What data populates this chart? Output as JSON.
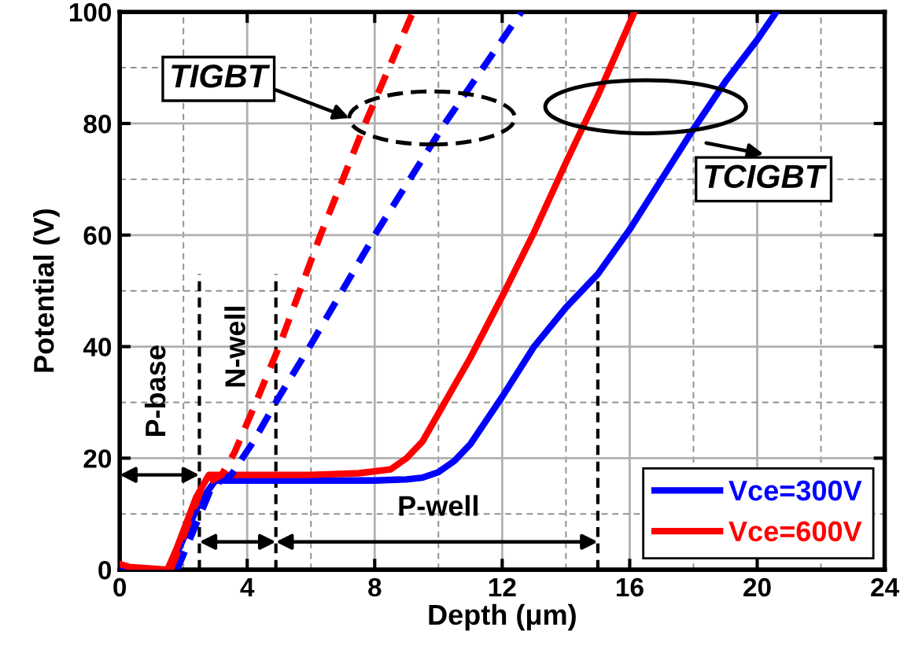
{
  "chart_data": {
    "type": "line",
    "xlabel": "Depth (μm)",
    "ylabel": "Potential (V)",
    "xlim": [
      0,
      24
    ],
    "xticks": [
      0,
      4,
      8,
      12,
      16,
      20,
      24
    ],
    "ylim": [
      0,
      100
    ],
    "yticks": [
      0,
      20,
      40,
      60,
      80,
      100
    ],
    "grid": true,
    "legend": "bottom right",
    "line_style": "solid",
    "marker": "none",
    "series": [
      {
        "name": "Vce=300V",
        "color": "#0000ff",
        "x": [
          0,
          1.5,
          1.8,
          2.5,
          3.0,
          4,
          6,
          8,
          9,
          9.5,
          10,
          10.5,
          11,
          12,
          13,
          14,
          15,
          16,
          17,
          18,
          19,
          20,
          20.6
        ],
        "values": [
          0,
          0,
          3,
          12,
          16,
          16,
          16,
          16,
          16.2,
          16.5,
          17.5,
          19.5,
          22.5,
          31,
          40,
          47,
          53,
          61,
          70,
          79,
          87.5,
          95,
          100
        ]
      },
      {
        "name": "Vce=600V",
        "color": "#ff0000",
        "x": [
          0,
          0.3,
          1.5,
          1.8,
          2.4,
          2.8,
          4,
          6,
          7.5,
          8.5,
          9,
          9.5,
          10,
          11,
          12,
          13,
          14,
          15,
          16.15
        ],
        "values": [
          1,
          0.5,
          0,
          4,
          13,
          17,
          17,
          17,
          17.3,
          18,
          20,
          23,
          28,
          38,
          49,
          60.5,
          73,
          85,
          100
        ]
      },
      {
        "color": "#0000ff",
        "line_style": "dashed",
        "x": [
          1.8,
          2.9,
          3.5,
          4.2,
          5.0,
          5.96,
          8.0,
          10.2,
          12.6
        ],
        "values": [
          0,
          15,
          17,
          23,
          31,
          40,
          60,
          80,
          100
        ]
      },
      {
        "color": "#ff0000",
        "line_style": "dashed",
        "x": [
          1.6,
          2.6,
          3.2,
          3.6,
          4.2,
          5.0,
          6.3,
          7.7,
          9.2
        ],
        "values": [
          0,
          15,
          17,
          21,
          29,
          40,
          60,
          80,
          100
        ]
      }
    ],
    "ref_lines": [
      {
        "axis": "x",
        "value": 2.5,
        "line_style": "dashed",
        "color": "#000000"
      },
      {
        "axis": "x",
        "value": 4.9,
        "line_style": "dashed",
        "color": "#000000"
      },
      {
        "axis": "x",
        "value": 15,
        "line_style": "dashed",
        "color": "#000000"
      }
    ],
    "annotations": [
      "TIGBT",
      "TCIGBT",
      "P-base",
      "N-well",
      "P-well"
    ]
  }
}
